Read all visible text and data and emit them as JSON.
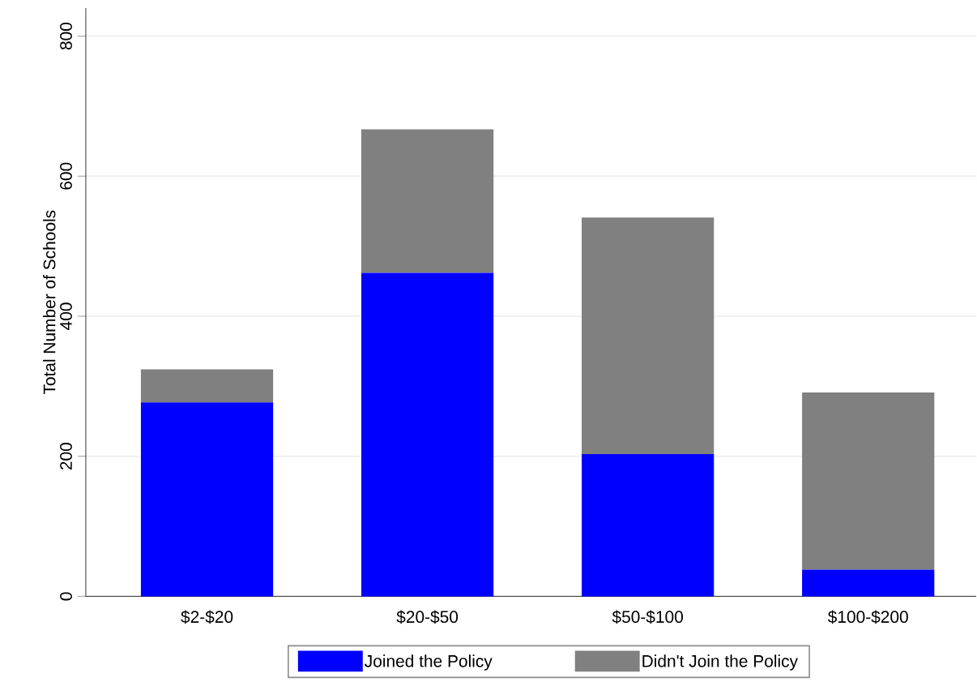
{
  "chart_data": {
    "type": "bar",
    "stacked": true,
    "ylabel": "Total Number of Schools",
    "categories": [
      "$2-$20",
      "$20-$50",
      "$50-$100",
      "$100-$200"
    ],
    "series": [
      {
        "name": "Joined the Policy",
        "color": "#0000ff",
        "values": [
          277,
          462,
          203,
          38
        ]
      },
      {
        "name": "Didn't Join the Policy",
        "color": "#808080",
        "values": [
          47,
          205,
          338,
          253
        ]
      }
    ],
    "ylim": [
      0,
      840
    ],
    "yticks": [
      0,
      200,
      400,
      600,
      800
    ],
    "grid": "y",
    "legend": "bottom"
  }
}
